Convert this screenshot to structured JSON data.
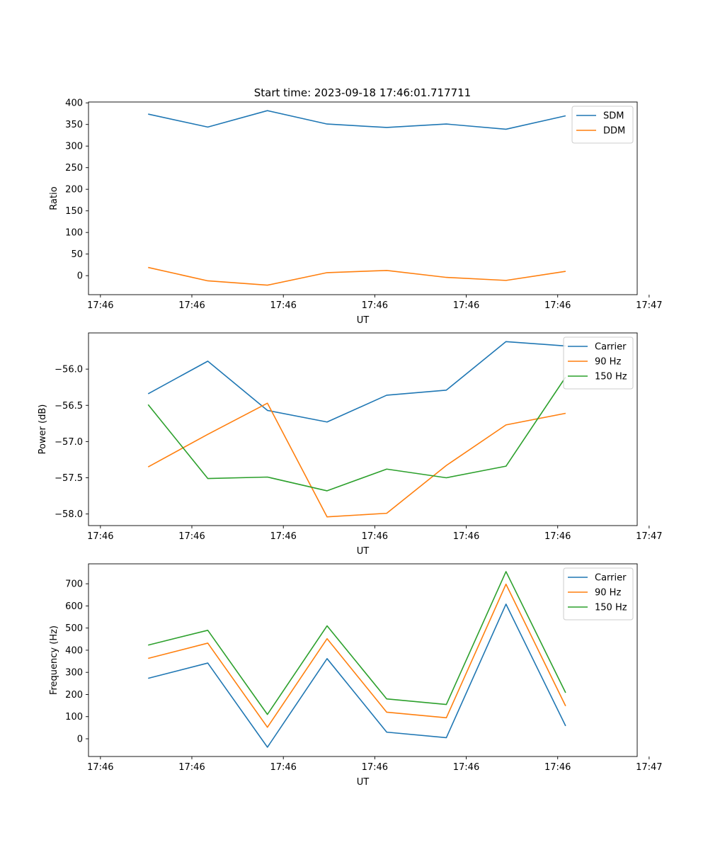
{
  "figure": {
    "title": "Start time: 2023-09-18 17:46:01.717711"
  },
  "colors": {
    "blue": "#1f77b4",
    "orange": "#ff7f0e",
    "green": "#2ca02c"
  },
  "chart_data": [
    {
      "type": "line",
      "title": "Start time: 2023-09-18 17:46:01.717711",
      "xlabel": "UT",
      "ylabel": "Ratio",
      "x": [
        1,
        2,
        3,
        4,
        5,
        6,
        7,
        8
      ],
      "xlim": [
        0,
        9.2
      ],
      "xticks": [
        0.2,
        1.733,
        3.267,
        4.8,
        6.333,
        7.867,
        9.4
      ],
      "xtick_labels": [
        "17:46",
        "17:46",
        "17:46",
        "17:46",
        "17:46",
        "17:46",
        "17:47"
      ],
      "ylim": [
        -44,
        402
      ],
      "yticks": [
        0,
        50,
        100,
        150,
        200,
        250,
        300,
        350,
        400
      ],
      "ytick_labels": [
        "0",
        "50",
        "100",
        "150",
        "200",
        "250",
        "300",
        "350",
        "400"
      ],
      "legend_position": "top-right",
      "series": [
        {
          "name": "SDM",
          "color": "#1f77b4",
          "values": [
            374,
            344,
            382,
            351,
            343,
            351,
            339,
            370
          ]
        },
        {
          "name": "DDM",
          "color": "#ff7f0e",
          "values": [
            19,
            -12,
            -22,
            7,
            12,
            -4,
            -11,
            10
          ]
        }
      ]
    },
    {
      "type": "line",
      "xlabel": "UT",
      "ylabel": "Power (dB)",
      "x": [
        1,
        2,
        3,
        4,
        5,
        6,
        7,
        8
      ],
      "xlim": [
        0,
        9.2
      ],
      "xticks": [
        0.2,
        1.733,
        3.267,
        4.8,
        6.333,
        7.867,
        9.4
      ],
      "xtick_labels": [
        "17:46",
        "17:46",
        "17:46",
        "17:46",
        "17:46",
        "17:46",
        "17:47"
      ],
      "ylim": [
        -58.16,
        -55.5
      ],
      "yticks": [
        -58.0,
        -57.5,
        -57.0,
        -56.5,
        -56.0
      ],
      "ytick_labels": [
        "−58.0",
        "−57.5",
        "−57.0",
        "−56.5",
        "−56.0"
      ],
      "legend_position": "top-right",
      "series": [
        {
          "name": "Carrier",
          "color": "#1f77b4",
          "values": [
            -56.34,
            -55.89,
            -56.57,
            -56.73,
            -56.36,
            -56.29,
            -55.62,
            -55.68
          ]
        },
        {
          "name": "90 Hz",
          "color": "#ff7f0e",
          "values": [
            -57.35,
            -56.9,
            -56.47,
            -58.04,
            -57.99,
            -57.33,
            -56.77,
            -56.61
          ]
        },
        {
          "name": "150 Hz",
          "color": "#2ca02c",
          "values": [
            -56.49,
            -57.51,
            -57.49,
            -57.68,
            -57.38,
            -57.5,
            -57.34,
            -56.11
          ]
        }
      ]
    },
    {
      "type": "line",
      "xlabel": "UT",
      "ylabel": "Frequency (Hz)",
      "x": [
        1,
        2,
        3,
        4,
        5,
        6,
        7,
        8
      ],
      "xlim": [
        0,
        9.2
      ],
      "xticks": [
        0.2,
        1.733,
        3.267,
        4.8,
        6.333,
        7.867,
        9.4
      ],
      "xtick_labels": [
        "17:46",
        "17:46",
        "17:46",
        "17:46",
        "17:46",
        "17:46",
        "17:47"
      ],
      "ylim": [
        -80,
        790
      ],
      "yticks": [
        0,
        100,
        200,
        300,
        400,
        500,
        600,
        700
      ],
      "ytick_labels": [
        "0",
        "100",
        "200",
        "300",
        "400",
        "500",
        "600",
        "700"
      ],
      "legend_position": "top-right",
      "series": [
        {
          "name": "Carrier",
          "color": "#1f77b4",
          "values": [
            273,
            342,
            -38,
            362,
            30,
            5,
            608,
            58
          ]
        },
        {
          "name": "90 Hz",
          "color": "#ff7f0e",
          "values": [
            363,
            432,
            52,
            452,
            120,
            95,
            698,
            148
          ]
        },
        {
          "name": "150 Hz",
          "color": "#2ca02c",
          "values": [
            423,
            490,
            110,
            510,
            180,
            155,
            755,
            208
          ]
        }
      ]
    }
  ]
}
